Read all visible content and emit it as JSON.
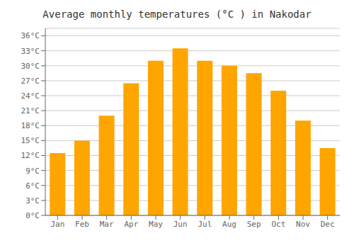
{
  "chart_data": {
    "type": "bar",
    "title": "Average monthly temperatures (°C ) in Nakodar",
    "categories": [
      "Jan",
      "Feb",
      "Mar",
      "Apr",
      "May",
      "Jun",
      "Jul",
      "Aug",
      "Sep",
      "Oct",
      "Nov",
      "Dec"
    ],
    "values": [
      12.5,
      15.0,
      20.0,
      26.5,
      31.0,
      33.5,
      31.0,
      30.0,
      28.5,
      25.0,
      19.0,
      13.5
    ],
    "color": "#FFA500",
    "ylim": [
      0,
      37.5
    ],
    "yticks": [
      {
        "value": 0,
        "label": "0°C"
      },
      {
        "value": 3,
        "label": "3°C"
      },
      {
        "value": 6,
        "label": "6°C"
      },
      {
        "value": 9,
        "label": "9°C"
      },
      {
        "value": 12,
        "label": "12°C"
      },
      {
        "value": 15,
        "label": "15°C"
      },
      {
        "value": 18,
        "label": "18°C"
      },
      {
        "value": 21,
        "label": "21°C"
      },
      {
        "value": 24,
        "label": "24°C"
      },
      {
        "value": 27,
        "label": "27°C"
      },
      {
        "value": 30,
        "label": "30°C"
      },
      {
        "value": 33,
        "label": "33°C"
      },
      {
        "value": 36,
        "label": "36°C"
      }
    ],
    "grid": true
  }
}
